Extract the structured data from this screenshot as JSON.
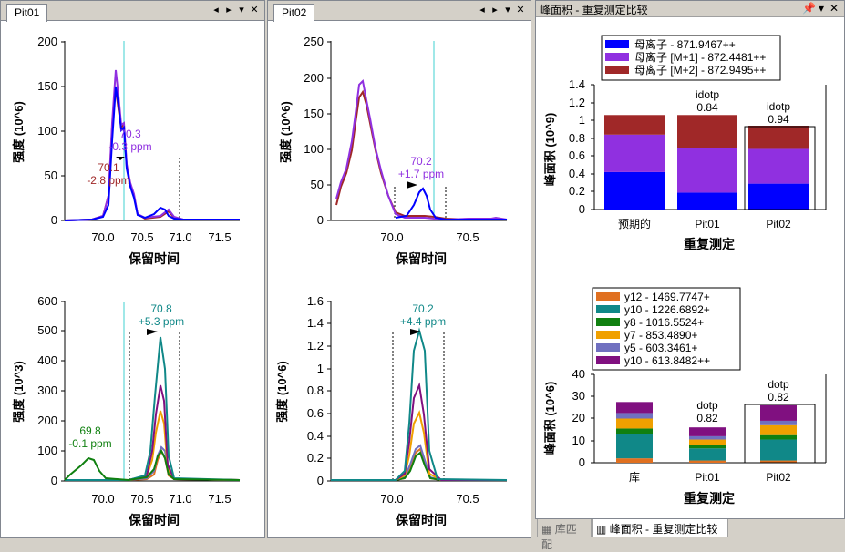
{
  "pane1": {
    "tab": "Pit01",
    "top_chart": {
      "ylabel": "强度 (10^6)",
      "xlabel": "保留时间",
      "yticks": [
        "0",
        "50",
        "100",
        "150",
        "200"
      ],
      "xticks": [
        "70.0",
        "70.5",
        "71.0",
        "71.5"
      ],
      "ann1": "70.3",
      "ann2": "-0.3 ppm",
      "ann3": "70.1",
      "ann4": "-2.8 ppm"
    },
    "bottom_chart": {
      "ylabel": "强度 (10^3)",
      "xlabel": "保留时间",
      "yticks": [
        "0",
        "100",
        "200",
        "300",
        "400",
        "500",
        "600"
      ],
      "xticks": [
        "70.0",
        "70.5",
        "71.0",
        "71.5"
      ],
      "ann1": "70.8",
      "ann2": "+5.3 ppm",
      "ann3": "69.8",
      "ann4": "-0.1 ppm"
    }
  },
  "pane2": {
    "tab": "Pit02",
    "top_chart": {
      "ylabel": "强度 (10^6)",
      "xlabel": "保留时间",
      "yticks": [
        "0",
        "50",
        "100",
        "150",
        "200",
        "250"
      ],
      "xticks": [
        "70.0",
        "70.5"
      ],
      "ann1": "70.2",
      "ann2": "+1.7 ppm"
    },
    "bottom_chart": {
      "ylabel": "强度 (10^6)",
      "xlabel": "保留时间",
      "yticks": [
        "0",
        "0.2",
        "0.4",
        "0.6",
        "0.8",
        "1",
        "1.2",
        "1.4",
        "1.6"
      ],
      "xticks": [
        "70.0",
        "70.5"
      ],
      "ann1": "70.2",
      "ann2": "+4.4 ppm"
    }
  },
  "pane3": {
    "title": "峰面积 - 重复测定比较",
    "top_chart": {
      "ylabel": "峰面积 (10^9)",
      "xlabel": "重复测定",
      "legend": [
        "母离子 - 871.9467++",
        "母离子 [M+1] - 872.4481++",
        "母离子 [M+2] - 872.9495++"
      ],
      "yticks": [
        "0",
        "0.2",
        "0.4",
        "0.6",
        "0.8",
        "1",
        "1.2",
        "1.4"
      ],
      "categories": [
        "预期的",
        "Pit01",
        "Pit02"
      ],
      "lbl_b1": "idotp",
      "val_b1": "0.84",
      "lbl_b2": "idotp",
      "val_b2": "0.94"
    },
    "bottom_chart": {
      "ylabel": "峰面积 (10^6)",
      "xlabel": "重复测定",
      "legend": [
        "y12 - 1469.7747+",
        "y10 - 1226.6892+",
        "y8 - 1016.5524+",
        "y7 - 853.4890+",
        "y5 - 603.3461+",
        "y10 - 613.8482++"
      ],
      "yticks": [
        "0",
        "10",
        "20",
        "30",
        "40"
      ],
      "categories": [
        "库",
        "Pit01",
        "Pit02"
      ],
      "lbl_b1": "dotp",
      "val_b1": "0.82",
      "lbl_b2": "dotp",
      "val_b2": "0.82"
    }
  },
  "bottom_tabs": [
    "库匹配",
    "峰面积 - 重复测定比较"
  ],
  "icons": [
    "arrow-left-icon",
    "arrow-right-icon",
    "dropdown-icon",
    "close-icon",
    "pin-icon"
  ],
  "colors": {
    "parent": "#0000ff",
    "parent_m1": "#9030e0",
    "parent_m2": "#a02828",
    "y12": "#e07020",
    "y10": "#108888",
    "y8": "#108010",
    "y7": "#f0a000",
    "y5": "#7070c0",
    "y10b": "#801080",
    "cyan_marker": "#40d0d0"
  },
  "chart_data": [
    {
      "type": "bar",
      "title": "",
      "xlabel": "重复测定",
      "ylabel": "峰面积 (10^9)",
      "ylim": [
        0,
        1.4
      ],
      "categories": [
        "预期的",
        "Pit01",
        "Pit02"
      ],
      "series": [
        {
          "name": "母离子 - 871.9467++",
          "values": [
            0.42,
            0.19,
            0.29
          ]
        },
        {
          "name": "母离子 [M+1] - 872.4481++",
          "values": [
            0.42,
            0.5,
            0.39
          ]
        },
        {
          "name": "母离子 [M+2] - 872.9495++",
          "values": [
            0.22,
            0.37,
            0.26
          ]
        }
      ]
    },
    {
      "type": "bar",
      "title": "",
      "xlabel": "重复测定",
      "ylabel": "峰面积 (10^6)",
      "ylim": [
        0,
        40
      ],
      "categories": [
        "库",
        "Pit01",
        "Pit02"
      ],
      "series": [
        {
          "name": "y12 - 1469.7747+",
          "values": [
            2,
            1,
            1
          ]
        },
        {
          "name": "y10 - 1226.6892+",
          "values": [
            11,
            5.5,
            9.5
          ]
        },
        {
          "name": "y8 - 1016.5524+",
          "values": [
            2.5,
            1.5,
            2
          ]
        },
        {
          "name": "y7 - 853.4890+",
          "values": [
            4.5,
            2.5,
            4.5
          ]
        },
        {
          "name": "y5 - 603.3461+",
          "values": [
            2.5,
            1.5,
            2
          ]
        },
        {
          "name": "y10 - 613.8482++",
          "values": [
            5,
            4,
            7
          ]
        }
      ]
    }
  ]
}
